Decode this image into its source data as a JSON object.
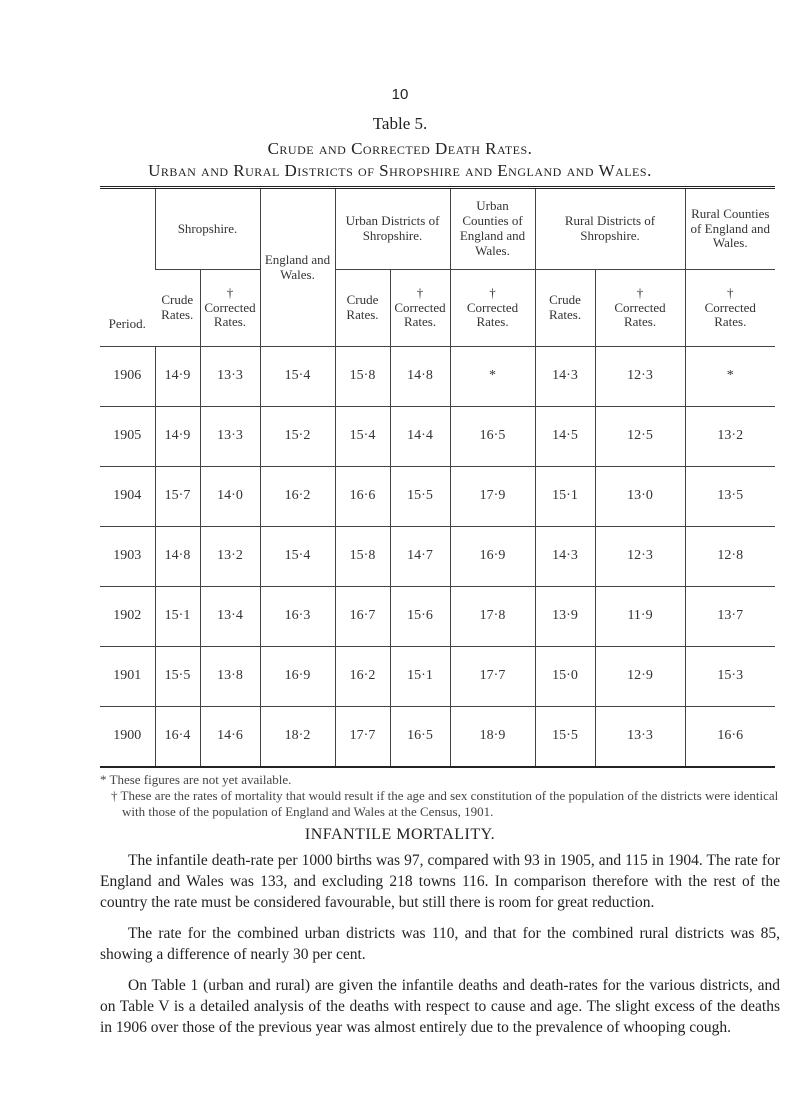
{
  "page_number": "10",
  "title": "Table 5.",
  "subtitle": "Crude and Corrected Death Rates.",
  "subtitle2": "Urban and Rural Districts of Shropshire and England and Wales.",
  "table": {
    "period_header": "Period.",
    "groups": [
      {
        "label": "Shropshire.",
        "subcolumns": [
          {
            "label": "Crude Rates."
          },
          {
            "marker": "†",
            "label": "Corrected Rates."
          }
        ]
      },
      {
        "label": "England and Wales."
      },
      {
        "label": "Urban Districts of Shropshire.",
        "subcolumns": [
          {
            "label": "Crude Rates."
          },
          {
            "marker": "†",
            "label": "Corrected Rates."
          }
        ]
      },
      {
        "label": "Urban Counties of England and Wales.",
        "subcolumns": [
          {
            "marker": "†",
            "label": "Corrected Rates."
          }
        ]
      },
      {
        "label": "Rural Districts of Shropshire.",
        "subcolumns": [
          {
            "label": "Crude Rates."
          },
          {
            "marker": "†",
            "label": "Corrected Rates."
          }
        ]
      },
      {
        "label": "Rural Counties of England and Wales.",
        "subcolumns": [
          {
            "marker": "†",
            "label": "Corrected Rates."
          }
        ]
      }
    ],
    "rows": [
      [
        "1906",
        "14·9",
        "13·3",
        "15·4",
        "15·8",
        "14·8",
        "*",
        "14·3",
        "12·3",
        "*"
      ],
      [
        "1905",
        "14·9",
        "13·3",
        "15·2",
        "15·4",
        "14·4",
        "16·5",
        "14·5",
        "12·5",
        "13·2"
      ],
      [
        "1904",
        "15·7",
        "14·0",
        "16·2",
        "16·6",
        "15·5",
        "17·9",
        "15·1",
        "13·0",
        "13·5"
      ],
      [
        "1903",
        "14·8",
        "13·2",
        "15·4",
        "15·8",
        "14·7",
        "16·9",
        "14·3",
        "12·3",
        "12·8"
      ],
      [
        "1902",
        "15·1",
        "13·4",
        "16·3",
        "16·7",
        "15·6",
        "17·8",
        "13·9",
        "11·9",
        "13·7"
      ],
      [
        "1901",
        "15·5",
        "13·8",
        "16·9",
        "16·2",
        "15·1",
        "17·7",
        "15·0",
        "12·9",
        "15·3"
      ],
      [
        "1900",
        "16·4",
        "14·6",
        "18·2",
        "17·7",
        "16·5",
        "18·9",
        "15·5",
        "13·3",
        "16·6"
      ]
    ]
  },
  "footnotes": [
    "* These figures are not yet available.",
    "† These are the rates of mortality that would result if the age and sex constitution of the population of the districts were identical with those of the population of England and Wales at the Census, 1901."
  ],
  "section_heading": "INFANTILE MORTALITY.",
  "paragraphs": [
    "The infantile death-rate per 1000 births was 97, compared with 93 in 1905, and 115 in 1904. The rate for England and Wales was 133, and excluding 218 towns 116. In comparison therefore with the rest of the country the rate must be considered favourable, but still there is room for great reduction.",
    "The rate for the combined urban districts was 110, and that for the combined rural districts was 85, showing a difference of nearly 30 per cent.",
    "On Table 1 (urban and rural) are given the infantile deaths and death-rates for the various districts, and on Table V is a detailed analysis of the deaths with respect to cause and age. The slight excess of the deaths in 1906 over those of the previous year was almost entirely due to the prevalence of whooping cough."
  ]
}
